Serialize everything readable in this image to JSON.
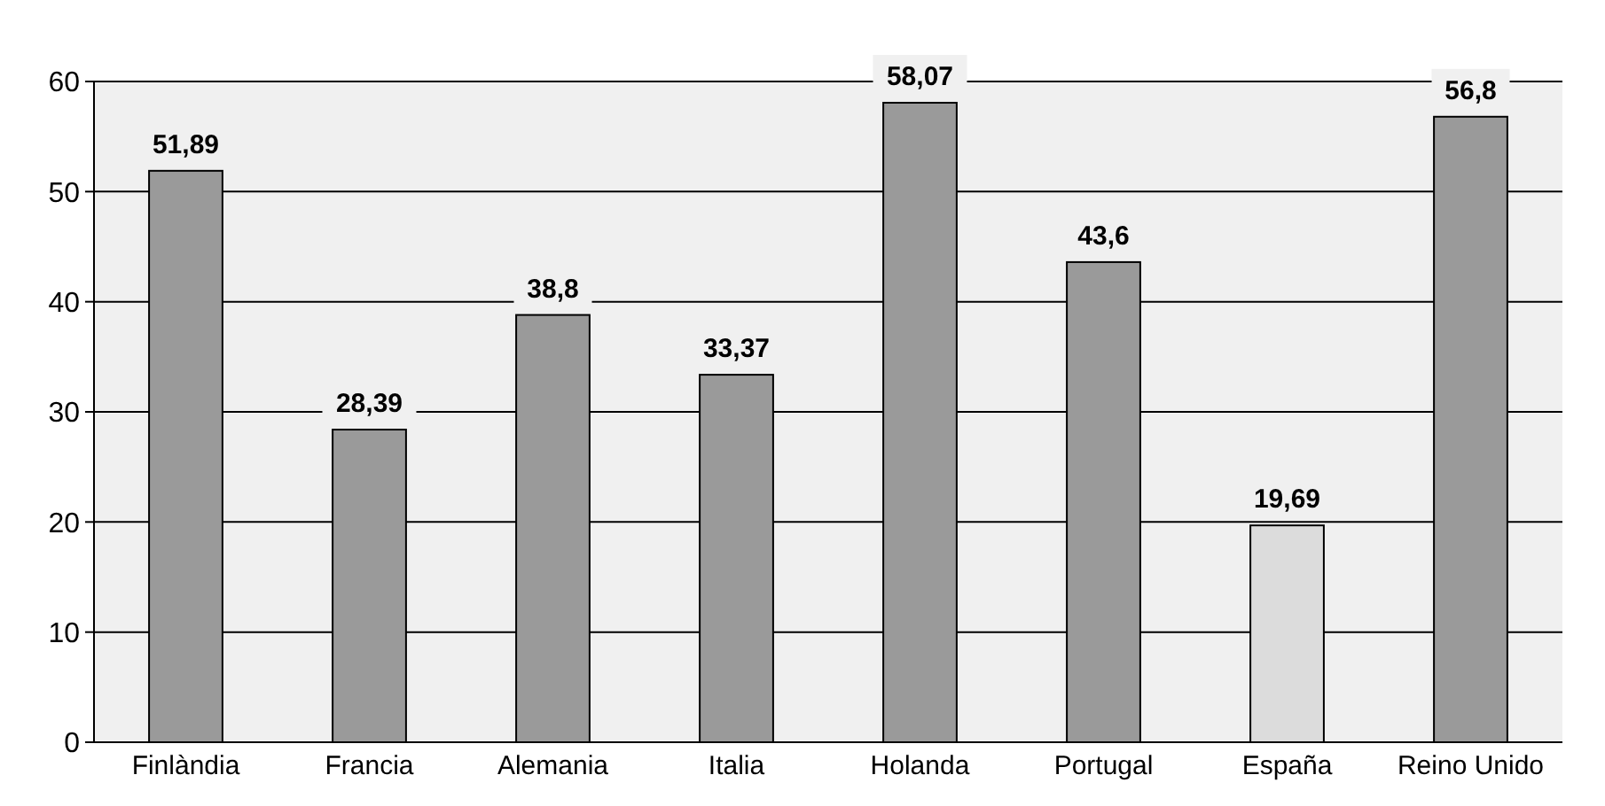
{
  "chart_data": {
    "type": "bar",
    "categories": [
      "Finlàndia",
      "Francia",
      "Alemania",
      "Italia",
      "Holanda",
      "Portugal",
      "España",
      "Reino Unido"
    ],
    "values": [
      51.89,
      28.39,
      38.8,
      33.37,
      58.07,
      43.6,
      19.69,
      56.8
    ],
    "colors": [
      "#9a9a9a",
      "#9a9a9a",
      "#9a9a9a",
      "#9a9a9a",
      "#9a9a9a",
      "#9a9a9a",
      "#dcdcdc",
      "#9a9a9a"
    ],
    "value_labels": [
      "51,89",
      "28,39",
      "38,8",
      "33,37",
      "58,07",
      "43,6",
      "19,69",
      "56,8"
    ],
    "ylim": [
      0,
      60
    ],
    "yticks": [
      0,
      10,
      20,
      30,
      40,
      50,
      60
    ],
    "grid": "y"
  }
}
